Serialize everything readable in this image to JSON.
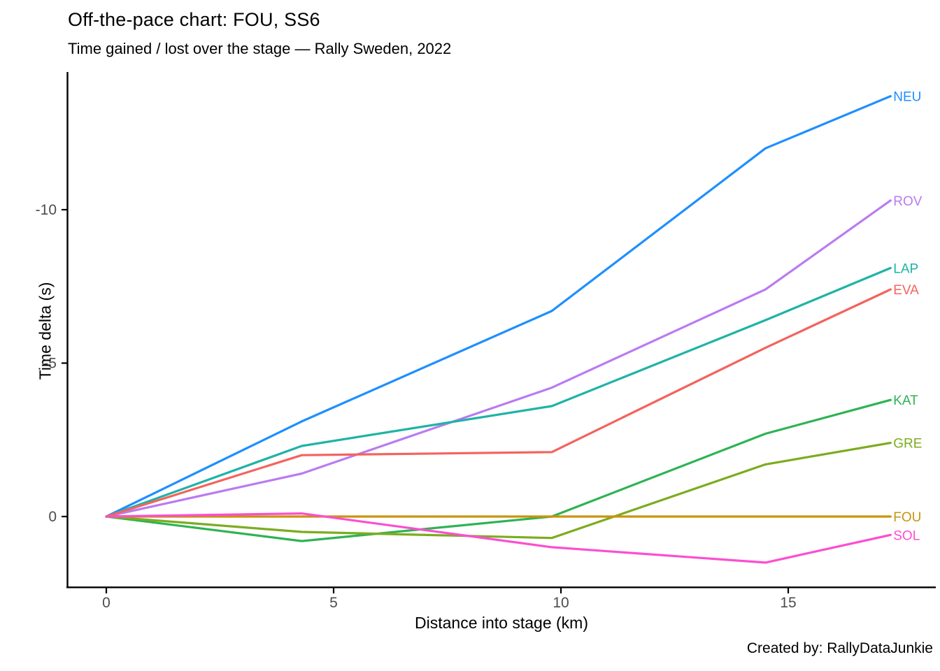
{
  "title": "Off-the-pace chart: FOU, SS6",
  "subtitle": "Time gained / lost over the stage — Rally Sweden, 2022",
  "caption": "Created by: RallyDataJunkie",
  "chart_data": {
    "type": "line",
    "title": "Off-the-pace chart: FOU, SS6",
    "subtitle": "Time gained / lost over the stage — Rally Sweden, 2022",
    "xlabel": "Distance into stage (km)",
    "ylabel": "Time delta (s)",
    "x": [
      0,
      4.3,
      9.8,
      14.5,
      17.25
    ],
    "xticks": [
      0,
      5,
      10,
      15
    ],
    "yticks": [
      0,
      -5,
      -10
    ],
    "xlim": [
      -0.9,
      18.3
    ],
    "ylim": [
      2.3,
      -14.5
    ],
    "y_axis_reversed": true,
    "grid": false,
    "legend_position": "right-line-end-labels",
    "axis_color": "#000000",
    "tick_label_color": "#4d4d4d",
    "series": [
      {
        "name": "NEU",
        "color": "#1E8FFF",
        "values": [
          0,
          -3.1,
          -6.7,
          -12.0,
          -13.7
        ]
      },
      {
        "name": "ROV",
        "color": "#BA7BF0",
        "values": [
          0,
          -1.4,
          -4.2,
          -7.4,
          -10.3
        ]
      },
      {
        "name": "LAP",
        "color": "#1FB3A6",
        "values": [
          0,
          -2.3,
          -3.6,
          -6.4,
          -8.1
        ]
      },
      {
        "name": "EVA",
        "color": "#F4635E",
        "values": [
          0,
          -2.0,
          -2.1,
          -5.5,
          -7.4
        ]
      },
      {
        "name": "KAT",
        "color": "#2EB353",
        "values": [
          0,
          0.8,
          0.0,
          -2.7,
          -3.8
        ]
      },
      {
        "name": "GRE",
        "color": "#7CAC1F",
        "values": [
          0,
          0.5,
          0.7,
          -1.7,
          -2.4
        ]
      },
      {
        "name": "FOU",
        "color": "#C9940D",
        "values": [
          0,
          0.0,
          0.0,
          0.0,
          0.0
        ]
      },
      {
        "name": "SOL",
        "color": "#FC4ED1",
        "values": [
          0,
          -0.1,
          1.0,
          1.5,
          0.6
        ]
      }
    ]
  }
}
